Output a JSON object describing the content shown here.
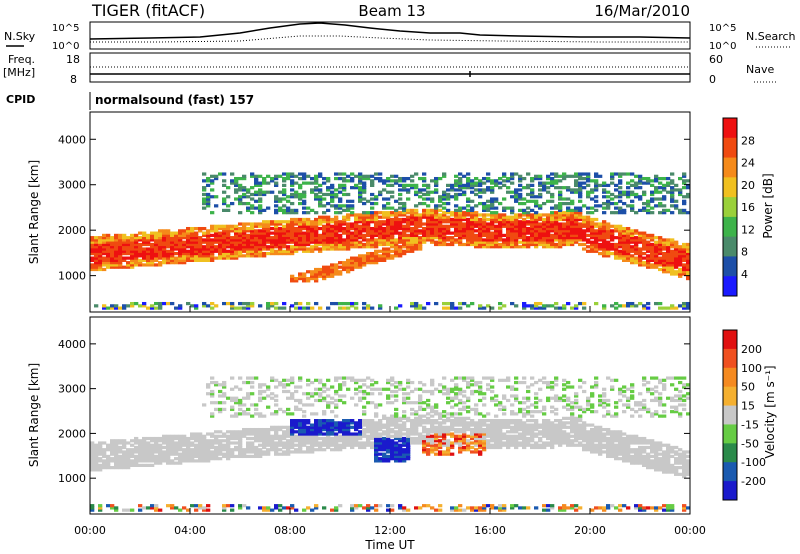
{
  "header": {
    "radar": "TIGER (fitACF)",
    "beam": "Beam 13",
    "date": "16/Mar/2010"
  },
  "summary": {
    "nsky_label": "N.Sky",
    "nsearch_label": "N.Search",
    "noise_ticks": [
      "10^5",
      "10^0"
    ],
    "freq_label": "Freq.",
    "freq_unit": "[MHz]",
    "freq_ticks": [
      "18",
      "8"
    ],
    "nave_label": "Nave",
    "nave_ticks": [
      "60",
      "0"
    ],
    "cpid_label": "CPID",
    "cpid_value": "normalsound (fast) 157"
  },
  "chart_data": [
    {
      "type": "heatmap",
      "name": "power",
      "ylabel": "Slant Range [km]",
      "yticks": [
        "1000",
        "2000",
        "3000",
        "4000"
      ],
      "ylim": [
        200,
        4600
      ],
      "colorbar_label": "Power [dB]",
      "colorbar_ticks": [
        "4",
        "8",
        "12",
        "16",
        "20",
        "24",
        "28"
      ],
      "colors": [
        "#1a1aff",
        "#1d4fa8",
        "#4a8a6a",
        "#3db34a",
        "#9ad03a",
        "#f0c020",
        "#f58a1a",
        "#f04a10",
        "#ee1010"
      ]
    },
    {
      "type": "heatmap",
      "name": "velocity",
      "ylabel": "Slant Range [km]",
      "yticks": [
        "1000",
        "2000",
        "3000",
        "4000"
      ],
      "ylim": [
        200,
        4600
      ],
      "colorbar_label": "Velocity [m s⁻¹]",
      "colorbar_ticks": [
        "200",
        "100",
        "50",
        "15",
        "-15",
        "-50",
        "-100",
        "-200"
      ],
      "colors": [
        "#1a1acc",
        "#1a5ab0",
        "#2a8a4a",
        "#66cc44",
        "#c8c8c8",
        "#f5b030",
        "#f58a20",
        "#f05020",
        "#e01010"
      ]
    }
  ],
  "xaxis": {
    "ticks": [
      "00:00",
      "04:00",
      "08:00",
      "12:00",
      "16:00",
      "20:00",
      "00:00"
    ],
    "label": "Time UT"
  }
}
